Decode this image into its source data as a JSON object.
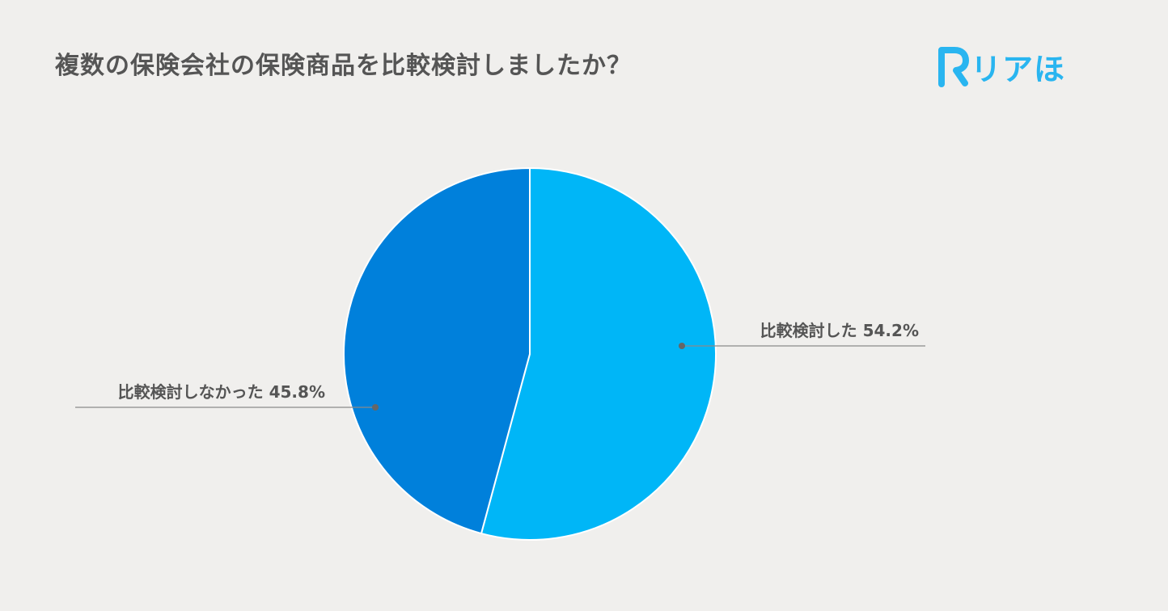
{
  "title": "複数の保険会社の保険商品を比較検討しましたか？",
  "logo": {
    "mark": "R",
    "text": "リアほ",
    "color": "#29b5f0"
  },
  "chart_data": {
    "type": "pie",
    "start": "top",
    "direction": "clockwise",
    "slices": [
      {
        "label": "比較検討した",
        "value": 54.2,
        "display": "54.2%",
        "color": "#00b6f7"
      },
      {
        "label": "比較検討しなかった",
        "value": 45.8,
        "display": "45.8%",
        "color": "#0080db"
      }
    ]
  }
}
